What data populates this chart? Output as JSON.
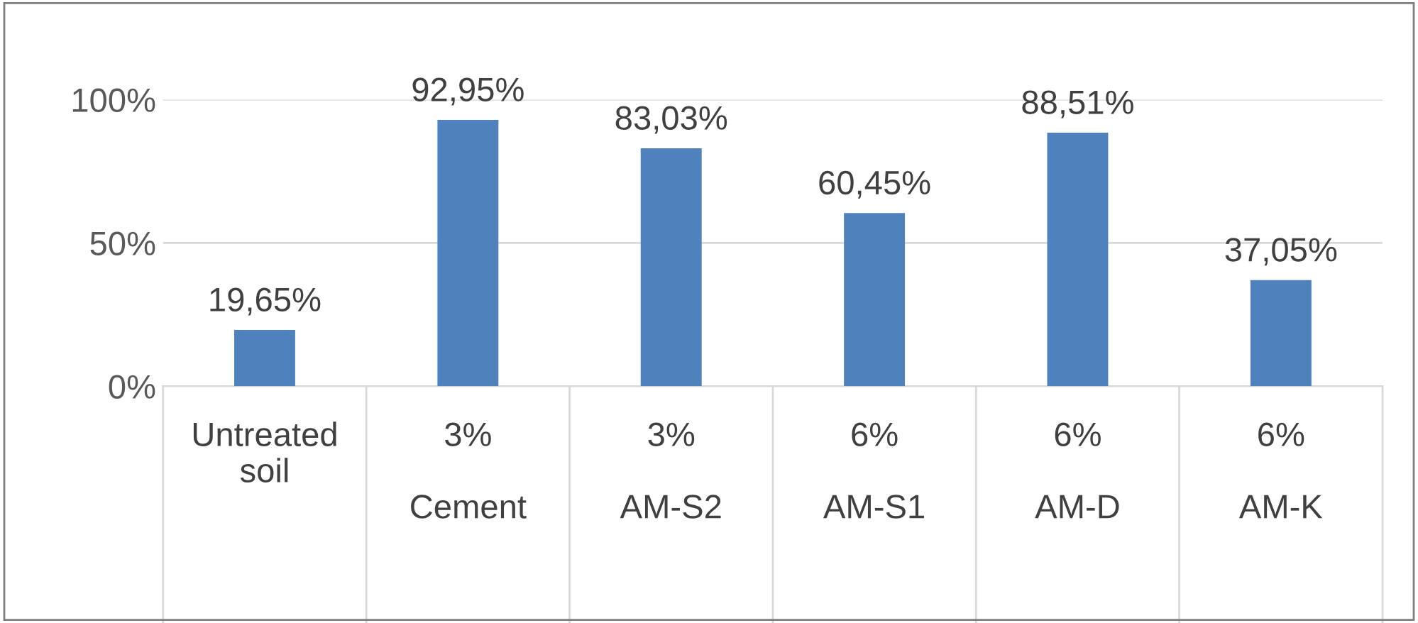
{
  "chart_data": {
    "type": "bar",
    "categories": [
      "Untreated\nsoil",
      "3%\n\nCement",
      "3%\n\nAM-S2",
      "6%\n\nAM-S1",
      "6%\n\nAM-D",
      "6%\n\nAM-K"
    ],
    "values": [
      19.65,
      92.95,
      83.03,
      60.45,
      88.51,
      37.05
    ],
    "value_labels": [
      "19,65%",
      "92,95%",
      "83,03%",
      "60,45%",
      "88,51%",
      "37,05%"
    ],
    "color": "#4f81bd",
    "ylim": [
      0,
      100
    ],
    "yticks": [
      {
        "value": 0,
        "label": "0%"
      },
      {
        "value": 50,
        "label": "50%"
      },
      {
        "value": 100,
        "label": "100%"
      }
    ],
    "grid": "y"
  }
}
